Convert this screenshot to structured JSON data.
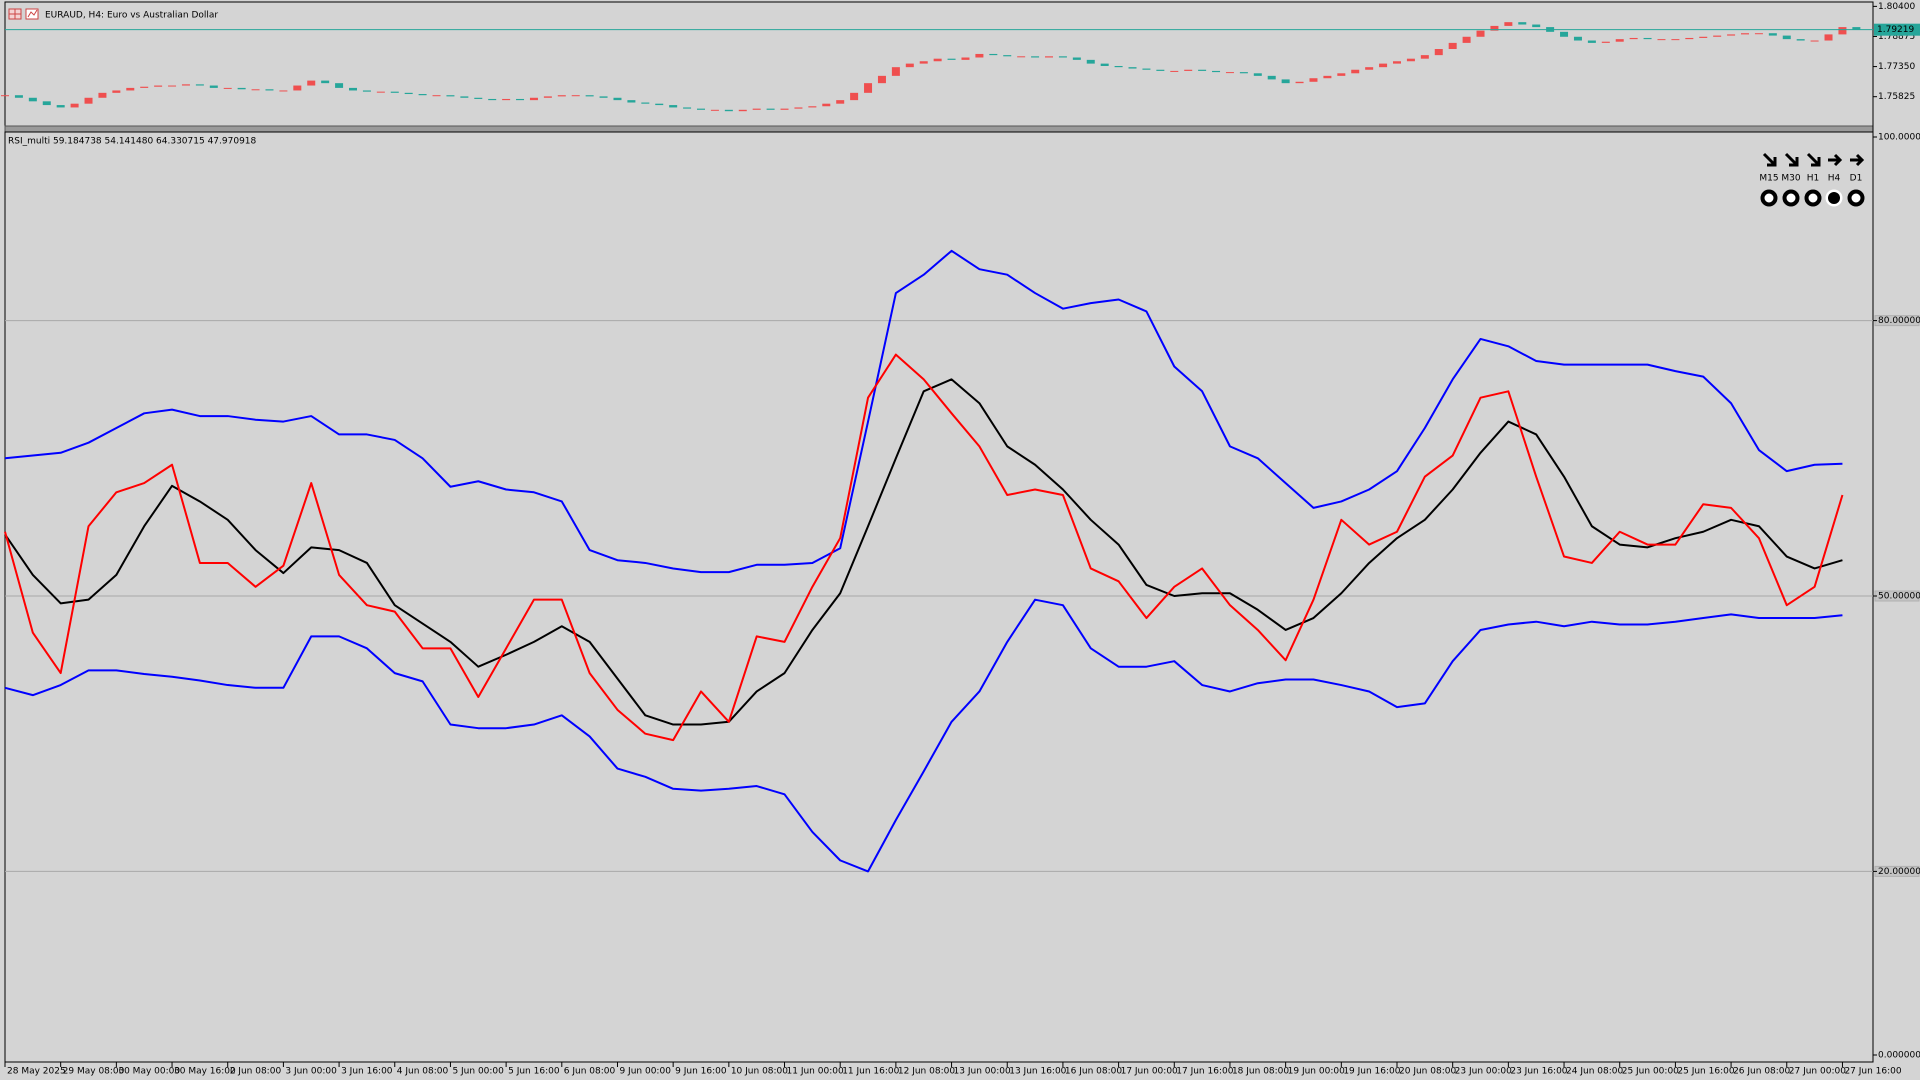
{
  "chart_data": [
    {
      "type": "candlestick",
      "title": "EURAUD, H4: Euro vs Australian Dollar",
      "close": [
        1.759,
        1.7577,
        1.7559,
        1.754,
        1.7528,
        1.7547,
        1.7577,
        1.7602,
        1.7614,
        1.7627,
        1.7633,
        1.7639,
        1.7639,
        1.7645,
        1.7639,
        1.7627,
        1.7627,
        1.762,
        1.762,
        1.7614,
        1.7614,
        1.7639,
        1.7664,
        1.7651,
        1.7627,
        1.7614,
        1.7608,
        1.7608,
        1.7602,
        1.7596,
        1.759,
        1.759,
        1.7584,
        1.7577,
        1.7571,
        1.7565,
        1.7571,
        1.7565,
        1.7577,
        1.7584,
        1.759,
        1.759,
        1.7584,
        1.7577,
        1.7565,
        1.7553,
        1.7547,
        1.754,
        1.7528,
        1.7522,
        1.7516,
        1.7516,
        1.7509,
        1.7516,
        1.7522,
        1.7516,
        1.7522,
        1.7528,
        1.7534,
        1.7547,
        1.7565,
        1.7602,
        1.7651,
        1.7688,
        1.7732,
        1.775,
        1.7762,
        1.7775,
        1.7769,
        1.7781,
        1.7799,
        1.7793,
        1.7787,
        1.7787,
        1.7781,
        1.7787,
        1.7781,
        1.7769,
        1.775,
        1.7738,
        1.7732,
        1.7725,
        1.7719,
        1.7713,
        1.7713,
        1.7719,
        1.7713,
        1.7707,
        1.7707,
        1.7701,
        1.7688,
        1.767,
        1.7651,
        1.7658,
        1.7676,
        1.7688,
        1.7701,
        1.7719,
        1.7732,
        1.775,
        1.7762,
        1.7775,
        1.7793,
        1.7824,
        1.7855,
        1.7886,
        1.7917,
        1.7941,
        1.796,
        1.7948,
        1.7935,
        1.7911,
        1.7886,
        1.7867,
        1.7855,
        1.7861,
        1.7874,
        1.788,
        1.7874,
        1.7874,
        1.7874,
        1.788,
        1.7886,
        1.7892,
        1.7898,
        1.7904,
        1.7904,
        1.7892,
        1.7874,
        1.7867,
        1.7867,
        1.7898,
        1.7935,
        1.79219
      ],
      "up_color": "#ef4f4f",
      "down_color": "#26a69a",
      "ylim": [
        1.7434,
        1.8052
      ],
      "yticks": [
        {
          "value": 1.804,
          "label": "1.80400"
        },
        1.78875,
        {
          "value": 1.7735,
          "label": "1.77350"
        },
        1.75825
      ],
      "current_price": 1.79219,
      "current_price_color": "#26a69a",
      "grid": false
    },
    {
      "type": "line",
      "title": "RSI_multi 59.184738 54.141480 64.330715 47.970918",
      "categories": [
        "28 May 2025",
        null,
        "29 May 08:00",
        null,
        "30 May 00:00",
        null,
        "30 May 16:00",
        null,
        "2 Jun 08:00",
        null,
        "3 Jun 00:00",
        null,
        "3 Jun 16:00",
        null,
        "4 Jun 08:00",
        null,
        "5 Jun 00:00",
        null,
        "5 Jun 16:00",
        null,
        "6 Jun 08:00",
        null,
        "9 Jun 00:00",
        null,
        "9 Jun 16:00",
        null,
        "10 Jun 08:00",
        null,
        "11 Jun 00:00",
        null,
        "11 Jun 16:00",
        null,
        "12 Jun 08:00",
        null,
        "13 Jun 00:00",
        null,
        "13 Jun 16:00",
        null,
        "16 Jun 08:00",
        null,
        "17 Jun 00:00",
        null,
        "17 Jun 16:00",
        null,
        "18 Jun 08:00",
        null,
        "19 Jun 00:00",
        null,
        "19 Jun 16:00",
        null,
        "20 Jun 08:00",
        null,
        "23 Jun 00:00",
        null,
        "23 Jun 16:00",
        null,
        "24 Jun 08:00",
        null,
        "25 Jun 00:00",
        null,
        "25 Jun 16:00",
        null,
        "26 Jun 08:00",
        null,
        "27 Jun 00:00",
        null,
        "27 Jun 16:00"
      ],
      "series": [
        {
          "color": "#0000ff",
          "values": [
            65,
            65.3,
            65.6,
            66.7,
            68.3,
            69.9,
            70.3,
            69.6,
            69.6,
            69.2,
            69,
            69.6,
            67.6,
            67.6,
            67,
            65,
            61.9,
            62.5,
            61.6,
            61.3,
            60.3,
            55,
            53.9,
            53.6,
            53,
            52.6,
            52.6,
            53.4,
            53.4,
            53.6,
            55.2,
            69,
            83,
            85,
            87.6,
            85.6,
            85,
            83,
            81.3,
            81.9,
            82.3,
            81,
            75,
            72.3,
            66.3,
            65,
            62.3,
            59.6,
            60.3,
            61.6,
            63.6,
            68.3,
            73.6,
            78,
            77.2,
            75.6,
            75.2,
            75.2,
            75.2,
            75.2,
            74.5,
            73.9,
            71,
            65.9,
            63.6,
            64.3,
            64.4
          ]
        },
        {
          "color": "#0000ff",
          "values": [
            40,
            39.2,
            40.3,
            41.9,
            41.9,
            41.5,
            41.2,
            40.8,
            40.3,
            40,
            40,
            45.6,
            45.6,
            44.3,
            41.6,
            40.7,
            36,
            35.6,
            35.6,
            36,
            37,
            34.7,
            31.2,
            30.3,
            29,
            28.8,
            29,
            29.3,
            28.4,
            24.3,
            21.2,
            20,
            25.6,
            30.9,
            36.3,
            39.6,
            45,
            49.6,
            49,
            44.3,
            42.3,
            42.3,
            42.9,
            40.3,
            39.6,
            40.5,
            40.9,
            40.9,
            40.3,
            39.6,
            37.9,
            38.3,
            42.9,
            46.3,
            46.9,
            47.2,
            46.7,
            47.2,
            46.9,
            46.9,
            47.2,
            47.6,
            48,
            47.6,
            47.6,
            47.6,
            47.9
          ]
        },
        {
          "color": "#000000",
          "values": [
            56.7,
            52.3,
            49.2,
            49.6,
            52.3,
            57.6,
            62,
            60.3,
            58.3,
            55,
            52.5,
            55.3,
            55,
            53.6,
            49,
            47,
            45,
            42.3,
            43.6,
            45,
            46.7,
            45,
            41,
            37,
            36,
            36,
            36.3,
            39.6,
            41.6,
            46.3,
            50.3,
            57.6,
            65,
            72.3,
            73.6,
            71,
            66.3,
            64.3,
            61.6,
            58.3,
            55.6,
            51.2,
            50,
            50.3,
            50.3,
            48.5,
            46.3,
            47.6,
            50.3,
            53.6,
            56.3,
            58.3,
            61.6,
            65.6,
            69,
            67.6,
            63,
            57.6,
            55.6,
            55.3,
            56.3,
            57,
            58.3,
            57.6,
            54.3,
            53,
            53.9
          ]
        },
        {
          "color": "#ff0000",
          "values": [
            57,
            46,
            41.6,
            57.6,
            61.3,
            62.3,
            64.3,
            53.6,
            53.6,
            51,
            53.3,
            62.3,
            52.3,
            49,
            48.3,
            44.3,
            44.3,
            39,
            44.3,
            49.6,
            49.6,
            41.6,
            37.6,
            35,
            34.3,
            39.6,
            36.3,
            45.6,
            45,
            51,
            56.3,
            71.6,
            76.3,
            73.6,
            69.9,
            66.3,
            61,
            61.6,
            61,
            53,
            51.6,
            47.6,
            51,
            53,
            49,
            46.3,
            43,
            49.6,
            58.3,
            55.6,
            57,
            63,
            65.3,
            71.6,
            72.3,
            63,
            54.3,
            53.6,
            57,
            55.6,
            55.6,
            60,
            59.6,
            56.3,
            49,
            51,
            61
          ]
        }
      ],
      "ylim": [
        0,
        100
      ],
      "yticks": [
        {
          "value": 100,
          "label": "100.000000"
        },
        {
          "value": 80,
          "label": "80.000000"
        },
        {
          "value": 50,
          "label": "50.000000"
        },
        {
          "value": 20,
          "label": "20.000000"
        },
        {
          "value": 0,
          "label": "0.000000"
        }
      ],
      "grid": true
    }
  ],
  "timeframe_panel": {
    "labels": [
      "M15",
      "M30",
      "H1",
      "H4",
      "D1"
    ]
  }
}
